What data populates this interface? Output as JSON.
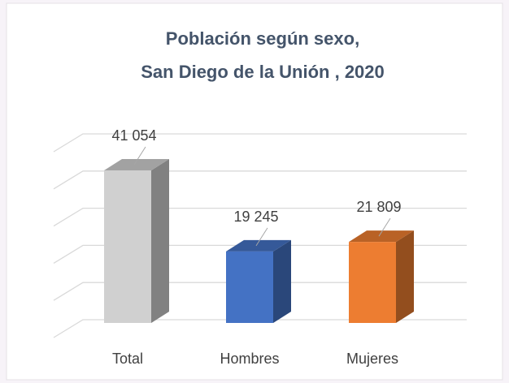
{
  "chart_data": {
    "type": "bar3d",
    "title": [
      "Población según sexo,",
      "San Diego de la Unión , 2020"
    ],
    "categories": [
      "Total",
      "Hombres",
      "Mujeres"
    ],
    "values": [
      41054,
      19245,
      21809
    ],
    "value_labels": [
      "41 054",
      "19 245",
      "21 809"
    ],
    "colors": [
      "#d0d0d0",
      "#4472c4",
      "#ed7d31"
    ],
    "ylim": [
      0,
      50000
    ],
    "yticks": [
      0,
      10000,
      20000,
      30000,
      40000,
      50000
    ],
    "grid": true
  }
}
